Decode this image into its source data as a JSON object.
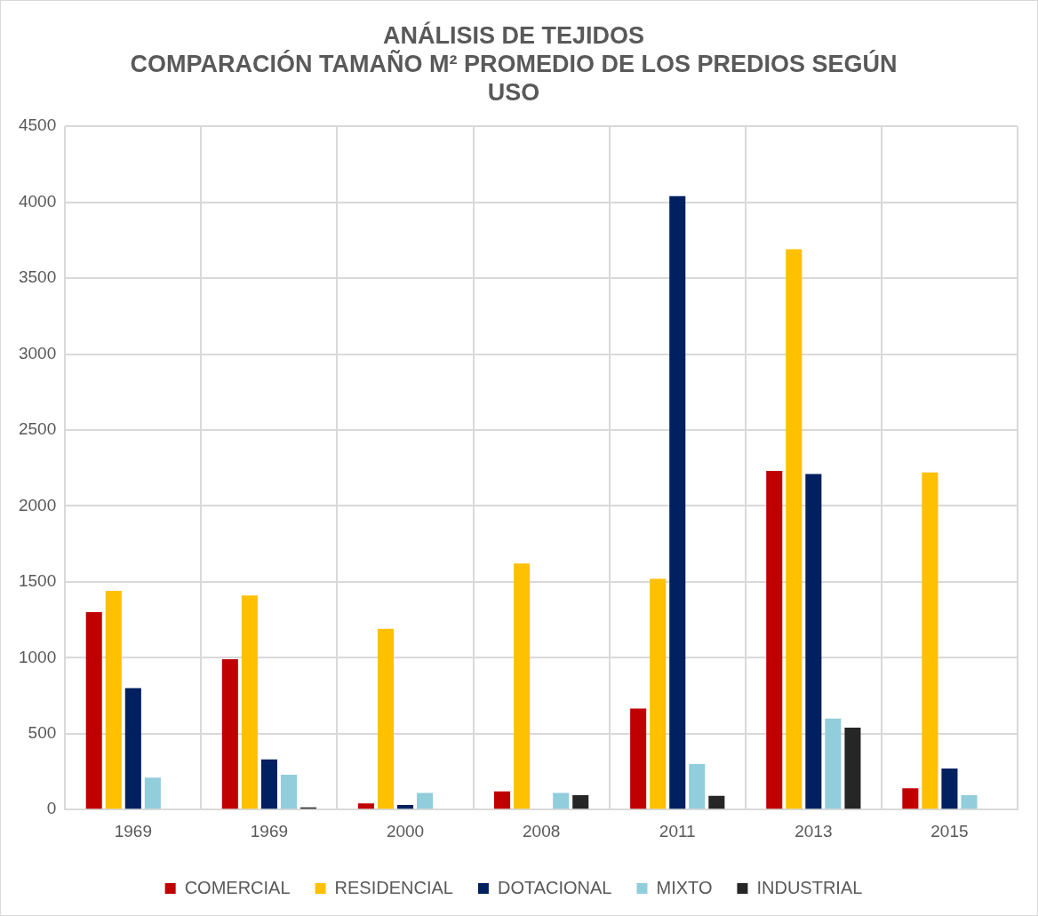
{
  "chart_data": {
    "type": "bar",
    "title": "ANÁLISIS DE TEJIDOS\nCOMPARACIÓN TAMAÑO M² PROMEDIO DE LOS PREDIOS SEGÚN\nUSO",
    "categories": [
      "1969",
      "1969",
      "2000",
      "2008",
      "2011",
      "2013",
      "2015"
    ],
    "series": [
      {
        "name": "COMERCIAL",
        "color": "#c00000",
        "values": [
          1300,
          990,
          40,
          120,
          665,
          2230,
          140
        ]
      },
      {
        "name": "RESIDENCIAL",
        "color": "#ffc000",
        "values": [
          1440,
          1410,
          1190,
          1620,
          1520,
          3690,
          2220
        ]
      },
      {
        "name": "DOTACIONAL",
        "color": "#002060",
        "values": [
          800,
          330,
          30,
          null,
          4040,
          2210,
          270
        ]
      },
      {
        "name": "MIXTO",
        "color": "#92cddc",
        "values": [
          210,
          230,
          110,
          110,
          300,
          600,
          95
        ]
      },
      {
        "name": "INDUSTRIAL",
        "color": "#262626",
        "values": [
          null,
          15,
          null,
          95,
          90,
          540,
          null
        ]
      }
    ],
    "ylim": [
      0,
      4500
    ],
    "yticks": [
      0,
      500,
      1000,
      1500,
      2000,
      2500,
      3000,
      3500,
      4000,
      4500
    ],
    "grid": true,
    "legend": "bottom"
  }
}
